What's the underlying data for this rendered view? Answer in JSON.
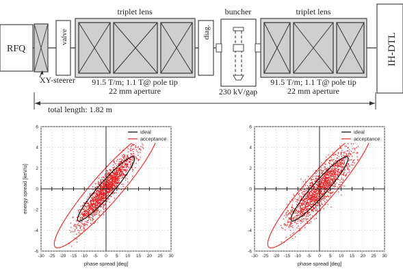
{
  "beamline": {
    "rfq": "RFQ",
    "steerer": "XY-steerer",
    "valve": "valve",
    "triplet_left_title": "triplet lens",
    "diag": "diag.",
    "buncher": "buncher",
    "triplet_right_title": "triplet lens",
    "ihdtl": "IH-DTL",
    "left_spec1": "91.5 T/m; 1.1 T@ pole tip",
    "left_spec2": "22 mm aperture",
    "right_spec1": "91.5 T/m; 1.1 T@ pole tip",
    "right_spec2": "22 mm aperture",
    "buncher_spec": "230 kV/gap",
    "total_length": "total length: 1.82 m"
  },
  "chart_data": [
    {
      "type": "scatter",
      "xlabel": "phase spread [deg]",
      "ylabel": "energy spread [keV/u]",
      "xlim": [
        -30,
        30
      ],
      "ylim": [
        -6,
        6
      ],
      "xticks": [
        -30,
        -25,
        -20,
        -15,
        -10,
        -5,
        0,
        5,
        10,
        15,
        20,
        25,
        30
      ],
      "yticks": [
        -6,
        -4,
        -2,
        0,
        2,
        4,
        6
      ],
      "grid": true,
      "legend_position": "top-right",
      "legend": [
        "ideal",
        "acceptance"
      ],
      "ellipses": [
        {
          "name": "ideal",
          "color": "#111111",
          "semi_major": 13.5,
          "semi_minor": 1.0,
          "angle_deg": 12.6
        },
        {
          "name": "acceptance",
          "color": "#e8312d",
          "semi_major": 24.5,
          "semi_minor": 2.0,
          "angle_deg": 12.6
        }
      ],
      "cloud": {
        "color": "#ee2222",
        "semi_major": 15.0,
        "semi_minor": 1.1,
        "slope": 0.255,
        "count": 1700,
        "seed": 7
      }
    },
    {
      "type": "scatter",
      "xlabel": "phase spread [deg]",
      "ylabel": "",
      "xlim": [
        -30,
        30
      ],
      "ylim": [
        -6,
        6
      ],
      "xticks": [
        -30,
        -25,
        -20,
        -15,
        -10,
        -5,
        0,
        5,
        10,
        15,
        20,
        25,
        30
      ],
      "yticks": [
        -6,
        -4,
        -2,
        0,
        2,
        4,
        6
      ],
      "grid": true,
      "legend_position": "top-right",
      "legend": [
        "ideal",
        "acceptance"
      ],
      "ellipses": [
        {
          "name": "ideal",
          "color": "#111111",
          "semi_major": 13.5,
          "semi_minor": 1.0,
          "angle_deg": 12.6
        },
        {
          "name": "acceptance",
          "color": "#e8312d",
          "semi_major": 24.5,
          "semi_minor": 2.0,
          "angle_deg": 12.6
        }
      ],
      "cloud": {
        "color": "#ee2222",
        "semi_major": 15.5,
        "semi_minor": 1.4,
        "slope": 0.215,
        "count": 1700,
        "seed": 19
      }
    }
  ]
}
